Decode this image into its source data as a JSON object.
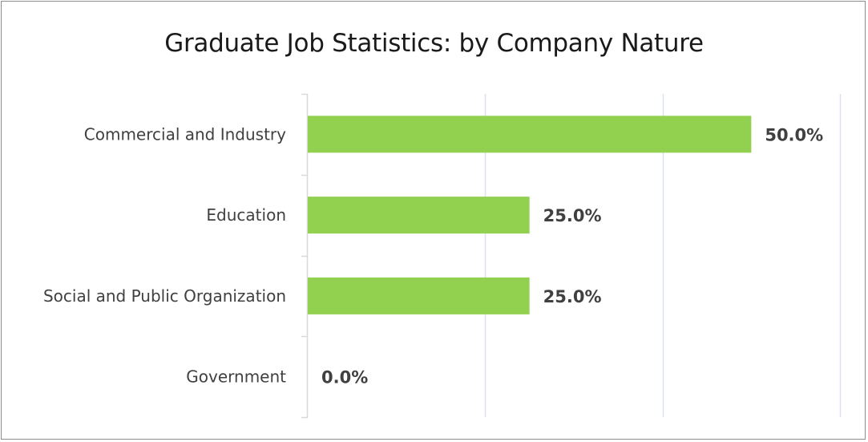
{
  "chart_data": {
    "type": "bar",
    "orientation": "horizontal",
    "title": "Graduate Job Statistics: by Company Nature",
    "categories": [
      "Commercial and Industry",
      "Education",
      "Social and Public Organization",
      "Government"
    ],
    "values": [
      50.0,
      25.0,
      25.0,
      0.0
    ],
    "value_labels": [
      "50.0%",
      "25.0%",
      "25.0%",
      "0.0%"
    ],
    "xlim": [
      0,
      60
    ],
    "grid": true,
    "legend": "none",
    "bar_color": "#92d050",
    "gridline_color": "#d9e1f2"
  }
}
